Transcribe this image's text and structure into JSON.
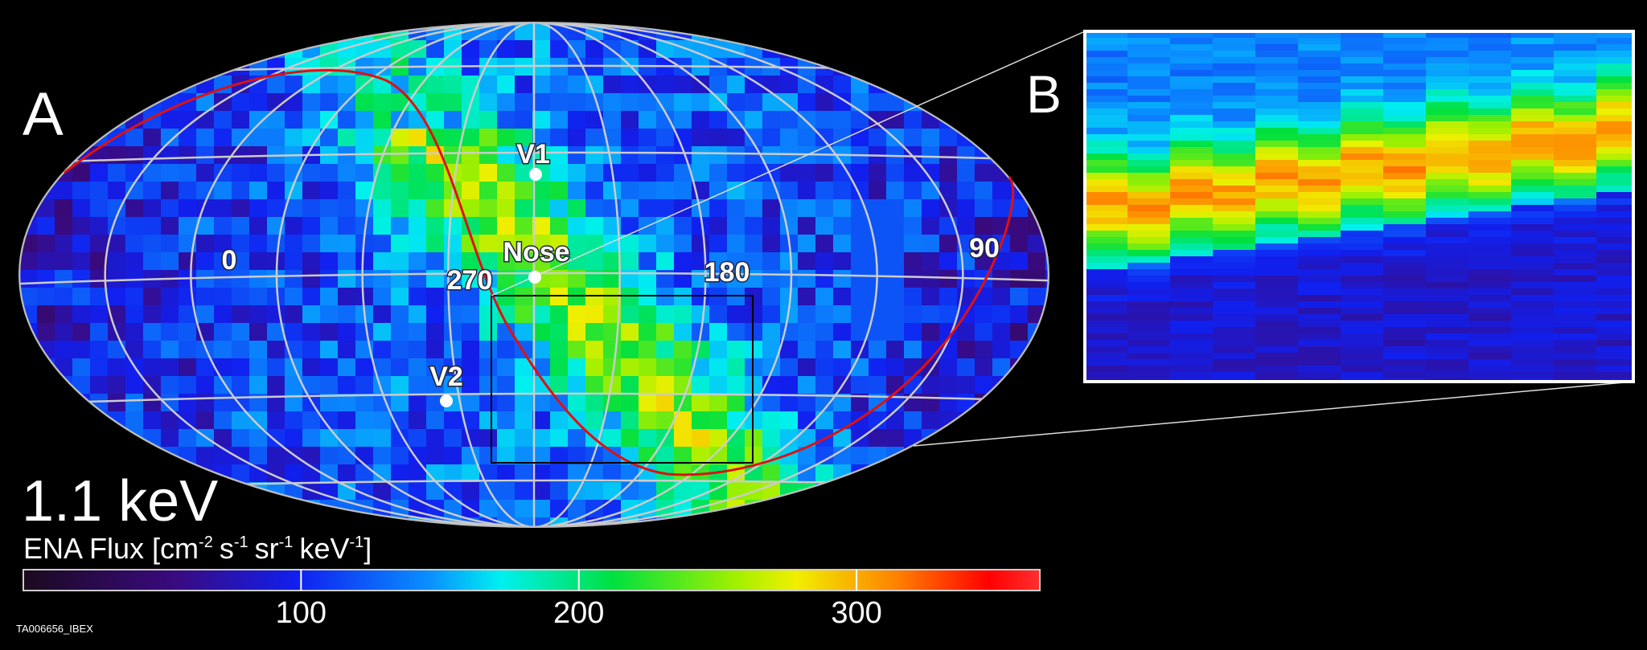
{
  "panels": {
    "a": "A",
    "b": "B"
  },
  "map": {
    "points": [
      "V1",
      "Nose",
      "V2"
    ],
    "longitudes": [
      "0",
      "270",
      "180",
      "90"
    ]
  },
  "energy": "1.1 keV",
  "colorbar": {
    "title": [
      "ENA Flux [cm",
      "-2",
      "s",
      "-1",
      "sr",
      "-1",
      "keV",
      "-1",
      "]"
    ],
    "lim": [
      0,
      366
    ],
    "ticks": [
      100,
      200,
      300
    ]
  },
  "footer": "TA006656_IBEX"
}
